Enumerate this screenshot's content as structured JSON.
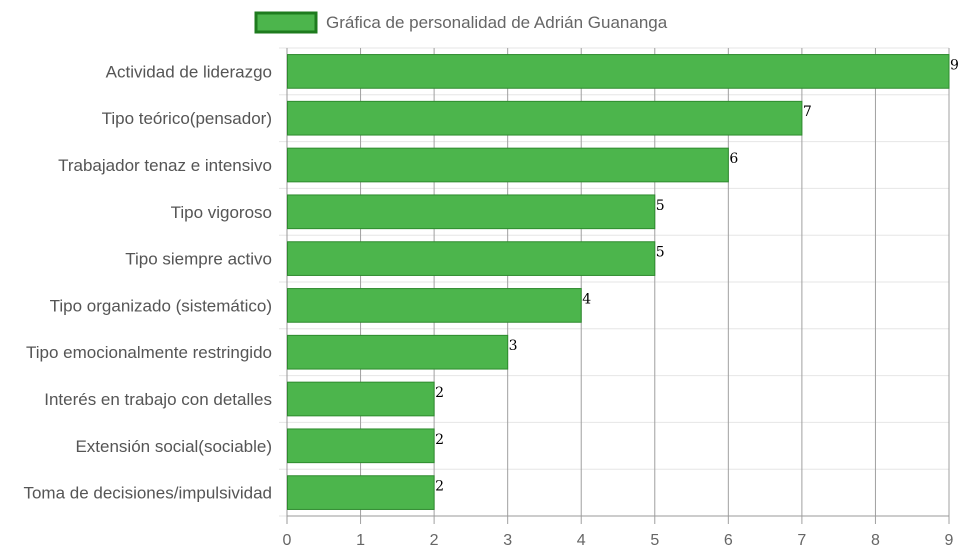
{
  "chart_data": {
    "type": "bar",
    "orientation": "horizontal",
    "legend": {
      "label": "Gráfica de personalidad de Adrián Guananga",
      "placement": "top-center"
    },
    "categories": [
      "Actividad de liderazgo",
      "Tipo teórico(pensador)",
      "Trabajador tenaz e intensivo",
      "Tipo vigoroso",
      "Tipo siempre activo",
      "Tipo organizado (sistemático)",
      "Tipo emocionalmente restringido",
      "Interés en trabajo con detalles",
      "Extensión social(sociable)",
      "Toma de decisiones/impulsividad"
    ],
    "series": [
      {
        "name": "Gráfica de personalidad de Adrián Guananga",
        "values": [
          9,
          7,
          6,
          5,
          5,
          4,
          3,
          2,
          2,
          2
        ],
        "color": "#4cb54c",
        "border_color": "#2e8b2e"
      }
    ],
    "x_ticks": [
      0,
      1,
      2,
      3,
      4,
      5,
      6,
      7,
      8,
      9
    ],
    "xlim": [
      0,
      9
    ],
    "grid": true,
    "data_labels": true
  }
}
